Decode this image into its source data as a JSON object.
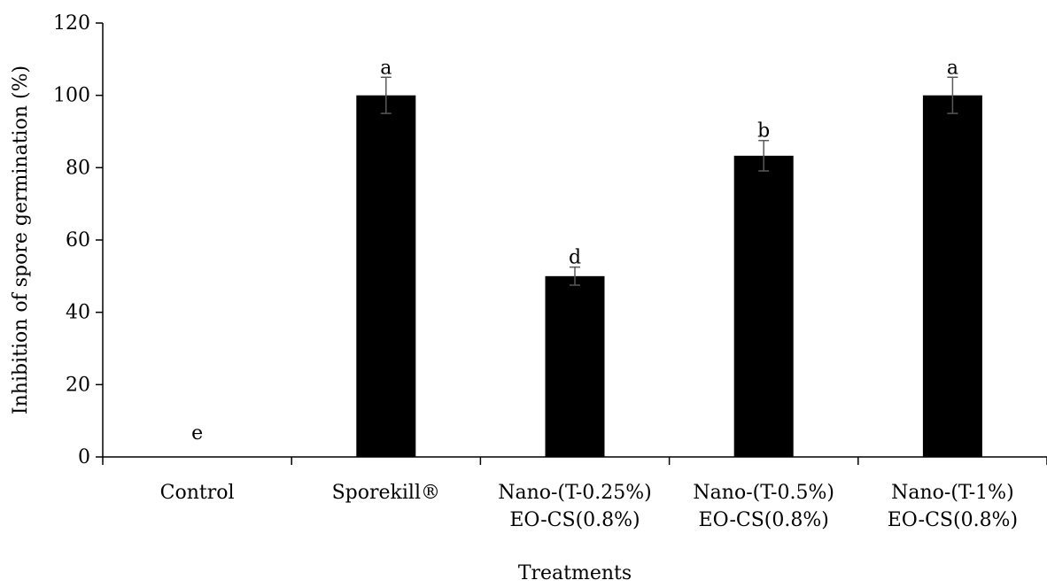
{
  "chart_data": {
    "type": "bar",
    "title": "",
    "xlabel": "Treatments",
    "ylabel": "Inhibition of  spore germination (%)",
    "ylim": [
      0,
      120
    ],
    "yticks": [
      0,
      20,
      40,
      60,
      80,
      100,
      120
    ],
    "categories": [
      [
        "Control"
      ],
      [
        "Sporekill®"
      ],
      [
        "Nano-(T-0.25%)",
        "EO-CS(0.8%)"
      ],
      [
        "Nano-(T-0.5%)",
        "EO-CS(0.8%)"
      ],
      [
        "Nano-(T-1%)",
        "EO-CS(0.8%)"
      ]
    ],
    "values": [
      0,
      100,
      50,
      83.3,
      100
    ],
    "errors": [
      0,
      5,
      2.5,
      4.2,
      5
    ],
    "significance_letters": [
      "e",
      "a",
      "d",
      "b",
      "a"
    ],
    "bar_color": "#000000",
    "error_bar_color": "#595959",
    "grid": false,
    "legend": "none"
  }
}
